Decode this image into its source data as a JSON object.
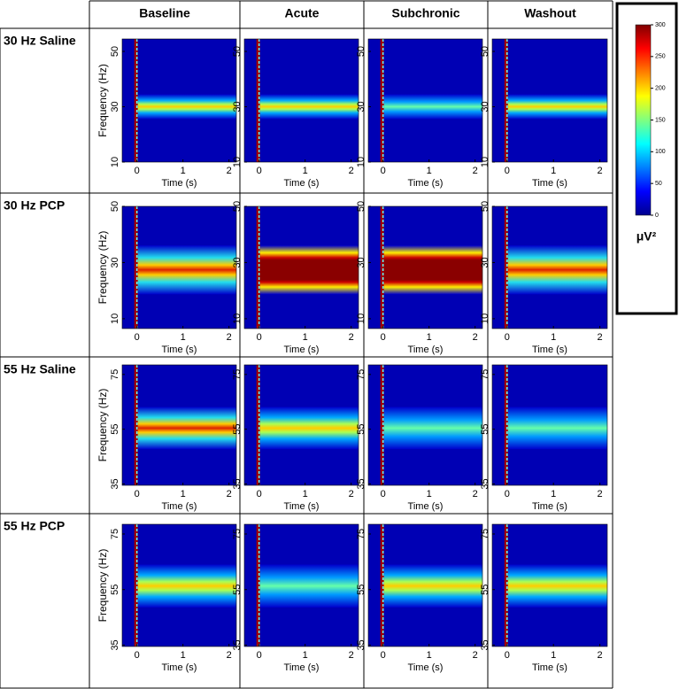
{
  "table": {
    "columns": [
      "Baseline",
      "Acute",
      "Subchronic",
      "Washout"
    ],
    "rows": [
      {
        "label": "30 Hz Saline",
        "ylim": [
          10,
          54.5
        ],
        "yticks": [
          10,
          30,
          50
        ]
      },
      {
        "label": "30 Hz PCP",
        "ylim": [
          6.5,
          50
        ],
        "yticks": [
          10,
          30,
          50
        ]
      },
      {
        "label": "55 Hz Saline",
        "ylim": [
          34.5,
          78.5
        ],
        "yticks": [
          35,
          55,
          75
        ]
      },
      {
        "label": "55 Hz PCP",
        "ylim": [
          34.5,
          78.5
        ],
        "yticks": [
          35,
          55,
          75
        ]
      }
    ]
  },
  "panel": {
    "x_label": "Time (s)",
    "y_label": "Frequency (Hz)",
    "xlim": [
      -0.32,
      2.16
    ],
    "xticks": [
      0,
      1,
      2
    ]
  },
  "colorbar": {
    "lim": [
      0,
      300
    ],
    "ticks": [
      0,
      50,
      100,
      150,
      200,
      250,
      300
    ],
    "label": "μV²"
  }
}
